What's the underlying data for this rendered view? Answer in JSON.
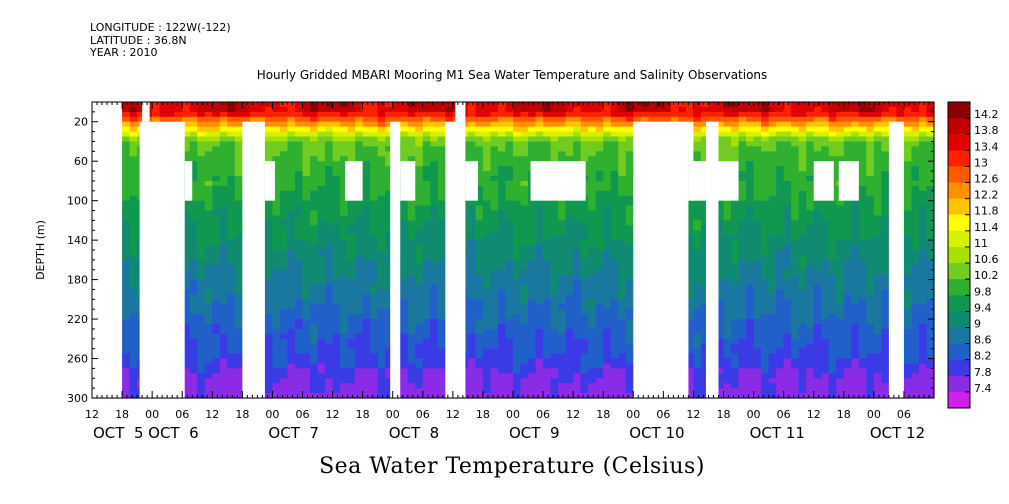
{
  "header": {
    "longitude": "LONGITUDE : 122W(-122)",
    "latitude": "LATITUDE : 36.8N",
    "year": "YEAR : 2010",
    "title": "Hourly Gridded MBARI Mooring M1 Sea Water Temperature and Salinity Observations"
  },
  "footer": {
    "label": "Sea Water Temperature (Celsius)"
  },
  "chart_data": {
    "type": "heatmap",
    "title": "Hourly Gridded MBARI Mooring M1 Sea Water Temperature and Salinity Observations",
    "xlabel": "",
    "ylabel": "DEPTH (m)",
    "colorbar_label": "Sea Water Temperature (Celsius)",
    "y_axis": {
      "range": [
        0,
        300
      ],
      "inverted": true,
      "ticks": [
        20,
        60,
        100,
        140,
        180,
        220,
        260,
        300
      ]
    },
    "x_axis": {
      "range_hours": [
        0,
        168
      ],
      "hour_ticks": [
        {
          "h": 0,
          "label": "12"
        },
        {
          "h": 6,
          "label": "18"
        },
        {
          "h": 12,
          "label": "00"
        },
        {
          "h": 18,
          "label": "06"
        },
        {
          "h": 24,
          "label": "12"
        },
        {
          "h": 30,
          "label": "18"
        },
        {
          "h": 36,
          "label": "00"
        },
        {
          "h": 42,
          "label": "06"
        },
        {
          "h": 48,
          "label": "12"
        },
        {
          "h": 54,
          "label": "18"
        },
        {
          "h": 60,
          "label": "00"
        },
        {
          "h": 66,
          "label": "06"
        },
        {
          "h": 72,
          "label": "12"
        },
        {
          "h": 78,
          "label": "18"
        },
        {
          "h": 84,
          "label": "00"
        },
        {
          "h": 90,
          "label": "06"
        },
        {
          "h": 96,
          "label": "12"
        },
        {
          "h": 102,
          "label": "18"
        },
        {
          "h": 108,
          "label": "00"
        },
        {
          "h": 114,
          "label": "06"
        },
        {
          "h": 120,
          "label": "12"
        },
        {
          "h": 126,
          "label": "18"
        },
        {
          "h": 132,
          "label": "00"
        },
        {
          "h": 138,
          "label": "06"
        },
        {
          "h": 144,
          "label": "12"
        },
        {
          "h": 150,
          "label": "18"
        },
        {
          "h": 156,
          "label": "00"
        },
        {
          "h": 162,
          "label": "06"
        }
      ],
      "date_labels": [
        {
          "h": 1,
          "label": "OCT  5"
        },
        {
          "h": 12,
          "label": "OCT  6"
        },
        {
          "h": 36,
          "label": "OCT  7"
        },
        {
          "h": 60,
          "label": "OCT  8"
        },
        {
          "h": 84,
          "label": "OCT  9"
        },
        {
          "h": 108,
          "label": "OCT 10"
        },
        {
          "h": 132,
          "label": "OCT 11"
        },
        {
          "h": 156,
          "label": "OCT 12"
        }
      ]
    },
    "colorbar": {
      "levels": [
        "14.2",
        "13.8",
        "13.4",
        "13",
        "12.6",
        "12.2",
        "11.8",
        "11.4",
        "11",
        "10.6",
        "10.2",
        "9.8",
        "9.4",
        "9",
        "8.6",
        "8.2",
        "7.8",
        "7.4"
      ],
      "colors": [
        "#8b0000",
        "#c00000",
        "#e00000",
        "#ff2000",
        "#ff5a00",
        "#ff9000",
        "#ffc400",
        "#ffff00",
        "#d8f000",
        "#a8e000",
        "#70cc20",
        "#30b030",
        "#109850",
        "#108a70",
        "#1a78a0",
        "#2060c8",
        "#3a3ae6",
        "#8a2be6",
        "#d020f0"
      ]
    },
    "temperature_model": {
      "surface_max": 14.2,
      "deep_min": 7.4
    },
    "missing_data": [
      {
        "h": [
          0,
          6
        ],
        "depth": [
          0,
          300
        ]
      },
      {
        "h": [
          10,
          11.5
        ],
        "depth": [
          0,
          20
        ]
      },
      {
        "h": [
          9.5,
          18.5
        ],
        "depth": [
          20,
          300
        ]
      },
      {
        "h": [
          18.5,
          20
        ],
        "depth": [
          60,
          100
        ]
      },
      {
        "h": [
          30,
          34.5
        ],
        "depth": [
          20,
          300
        ]
      },
      {
        "h": [
          34.5,
          36.5
        ],
        "depth": [
          60,
          100
        ]
      },
      {
        "h": [
          50.5,
          54
        ],
        "depth": [
          60,
          100
        ]
      },
      {
        "h": [
          59.5,
          61.5
        ],
        "depth": [
          20,
          300
        ]
      },
      {
        "h": [
          61.5,
          64.5
        ],
        "depth": [
          60,
          100
        ]
      },
      {
        "h": [
          70.5,
          74.5
        ],
        "depth": [
          20,
          300
        ]
      },
      {
        "h": [
          74.5,
          77
        ],
        "depth": [
          60,
          100
        ]
      },
      {
        "h": [
          72.5,
          74.5
        ],
        "depth": [
          0,
          20
        ]
      },
      {
        "h": [
          87.5,
          98.5
        ],
        "depth": [
          60,
          100
        ]
      },
      {
        "h": [
          108,
          119
        ],
        "depth": [
          20,
          300
        ]
      },
      {
        "h": [
          119,
          120
        ],
        "depth": [
          20,
          100
        ]
      },
      {
        "h": [
          119.5,
          122.5
        ],
        "depth": [
          60,
          100
        ]
      },
      {
        "h": [
          122.5,
          125
        ],
        "depth": [
          20,
          300
        ]
      },
      {
        "h": [
          125,
          129
        ],
        "depth": [
          60,
          100
        ]
      },
      {
        "h": [
          144,
          148
        ],
        "depth": [
          60,
          100
        ]
      },
      {
        "h": [
          149,
          153
        ],
        "depth": [
          60,
          100
        ]
      },
      {
        "h": [
          159,
          162
        ],
        "depth": [
          20,
          300
        ]
      }
    ]
  }
}
